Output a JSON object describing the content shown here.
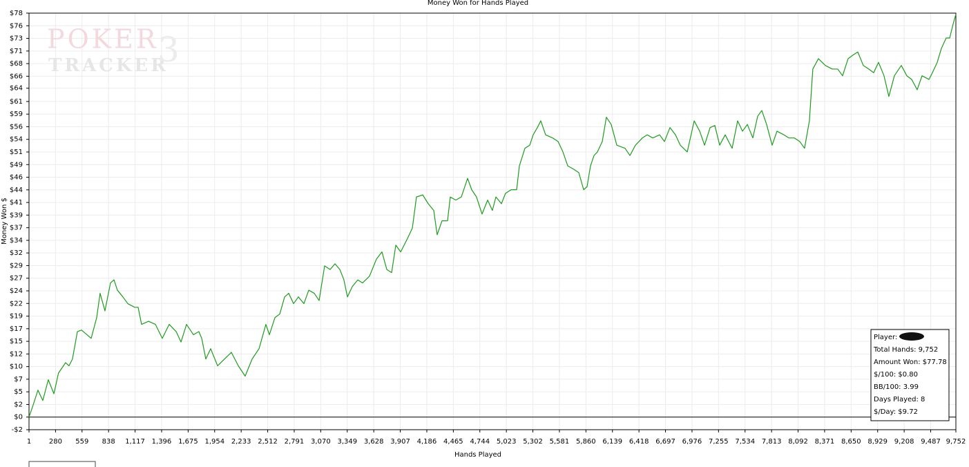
{
  "chart_data": {
    "type": "line",
    "title": "Money Won for Hands Played",
    "xlabel": "Hands Played",
    "ylabel": "Money Won $",
    "watermark": [
      "POKER",
      "TRACKER",
      "3"
    ],
    "grid": true,
    "xlim": [
      1,
      9752
    ],
    "ylim": [
      -2.4375,
      78
    ],
    "xticks": [
      1,
      {
        "value": 280,
        "label": "280"
      },
      {
        "value": 559,
        "label": "559"
      },
      {
        "value": 838,
        "label": "838"
      },
      {
        "value": 1117,
        "label": "1,117"
      },
      {
        "value": 1396,
        "label": "1,396"
      },
      {
        "value": 1675,
        "label": "1,675"
      },
      {
        "value": 1954,
        "label": "1,954"
      },
      {
        "value": 2233,
        "label": "2,233"
      },
      {
        "value": 2512,
        "label": "2,512"
      },
      {
        "value": 2791,
        "label": "2,791"
      },
      {
        "value": 3070,
        "label": "3,070"
      },
      {
        "value": 3349,
        "label": "3,349"
      },
      {
        "value": 3628,
        "label": "3,628"
      },
      {
        "value": 3907,
        "label": "3,907"
      },
      {
        "value": 4186,
        "label": "4,186"
      },
      {
        "value": 4465,
        "label": "4,465"
      },
      {
        "value": 4744,
        "label": "4,744"
      },
      {
        "value": 5023,
        "label": "5,023"
      },
      {
        "value": 5302,
        "label": "5,302"
      },
      {
        "value": 5581,
        "label": "5,581"
      },
      {
        "value": 5860,
        "label": "5,860"
      },
      {
        "value": 6139,
        "label": "6,139"
      },
      {
        "value": 6418,
        "label": "6,418"
      },
      {
        "value": 6697,
        "label": "6,697"
      },
      {
        "value": 6976,
        "label": "6,976"
      },
      {
        "value": 7255,
        "label": "7,255"
      },
      {
        "value": 7534,
        "label": "7,534"
      },
      {
        "value": 7813,
        "label": "7,813"
      },
      {
        "value": 8092,
        "label": "8,092"
      },
      {
        "value": 8371,
        "label": "8,371"
      },
      {
        "value": 8650,
        "label": "8,650"
      },
      {
        "value": 8929,
        "label": "8,929"
      },
      {
        "value": 9208,
        "label": "9,208"
      },
      {
        "value": 9487,
        "label": "9,487"
      },
      {
        "value": 9752,
        "label": "9,752"
      }
    ],
    "yticks": [
      {
        "value": -2.4375,
        "label": "-$2"
      },
      {
        "value": 0,
        "label": "$0"
      },
      {
        "value": 2.4375,
        "label": "$2"
      },
      {
        "value": 4.875,
        "label": "$5"
      },
      {
        "value": 7.3125,
        "label": "$7"
      },
      {
        "value": 9.75,
        "label": "$10"
      },
      {
        "value": 12.1875,
        "label": "$12"
      },
      {
        "value": 14.625,
        "label": "$15"
      },
      {
        "value": 17.0625,
        "label": "$17"
      },
      {
        "value": 19.49,
        "label": "$19"
      },
      {
        "value": 21.9375,
        "label": "$22"
      },
      {
        "value": 24.375,
        "label": "$24"
      },
      {
        "value": 26.8125,
        "label": "$27"
      },
      {
        "value": 29.25,
        "label": "$29"
      },
      {
        "value": 31.6875,
        "label": "$32"
      },
      {
        "value": 34.125,
        "label": "$34"
      },
      {
        "value": 36.5625,
        "label": "$37"
      },
      {
        "value": 39,
        "label": "$39"
      },
      {
        "value": 41.4375,
        "label": "$41"
      },
      {
        "value": 43.875,
        "label": "$44"
      },
      {
        "value": 46.3125,
        "label": "$46"
      },
      {
        "value": 48.75,
        "label": "$49"
      },
      {
        "value": 51.1875,
        "label": "$51"
      },
      {
        "value": 53.625,
        "label": "$54"
      },
      {
        "value": 56.0625,
        "label": "$56"
      },
      {
        "value": 58.5,
        "label": "$59"
      },
      {
        "value": 60.9375,
        "label": "$61"
      },
      {
        "value": 63.5,
        "label": "$64"
      },
      {
        "value": 65.8125,
        "label": "$66"
      },
      {
        "value": 68.25,
        "label": "$68"
      },
      {
        "value": 70.6875,
        "label": "$71"
      },
      {
        "value": 73.125,
        "label": "$73"
      },
      {
        "value": 75.5625,
        "label": "$76"
      },
      {
        "value": 78,
        "label": "$78"
      }
    ],
    "series": [
      {
        "name": "Money Won",
        "color": "#1e9a1e",
        "x": [
          1,
          37,
          95,
          146,
          204,
          263,
          311,
          386,
          422,
          458,
          510,
          553,
          611,
          655,
          713,
          749,
          800,
          858,
          895,
          931,
          989,
          1040,
          1113,
          1149,
          1185,
          1258,
          1331,
          1403,
          1476,
          1549,
          1600,
          1658,
          1731,
          1788,
          1818,
          1861,
          1912,
          1985,
          2057,
          2130,
          2203,
          2275,
          2348,
          2421,
          2493,
          2530,
          2588,
          2639,
          2690,
          2733,
          2784,
          2835,
          2893,
          2944,
          3002,
          3053,
          3111,
          3169,
          3220,
          3271,
          3314,
          3351,
          3402,
          3460,
          3510,
          3583,
          3656,
          3714,
          3765,
          3816,
          3860,
          3911,
          3983,
          4034,
          4077,
          4143,
          4201,
          4259,
          4295,
          4346,
          4404,
          4433,
          4491,
          4549,
          4615,
          4658,
          4709,
          4767,
          4826,
          4876,
          4913,
          4971,
          5014,
          5073,
          5131,
          5160,
          5218,
          5269,
          5305,
          5349,
          5385,
          5436,
          5509,
          5567,
          5618,
          5669,
          5727,
          5785,
          5836,
          5872,
          5908,
          5945,
          5981,
          6032,
          6075,
          6126,
          6185,
          6272,
          6323,
          6381,
          6454,
          6505,
          6563,
          6635,
          6686,
          6744,
          6802,
          6853,
          6926,
          6999,
          7057,
          7108,
          7166,
          7216,
          7267,
          7325,
          7398,
          7456,
          7507,
          7558,
          7616,
          7667,
          7710,
          7761,
          7819,
          7870,
          7943,
          7994,
          8052,
          8110,
          8160,
          8211,
          8247,
          8306,
          8378,
          8451,
          8509,
          8560,
          8618,
          8669,
          8720,
          8778,
          8836,
          8887,
          8938,
          8996,
          9047,
          9105,
          9178,
          9236,
          9287,
          9345,
          9396,
          9469,
          9505,
          9556,
          9600,
          9650,
          9687,
          9723,
          9752
        ],
        "values": [
          0,
          1.9,
          5.2,
          3.2,
          7.2,
          4.5,
          8.5,
          10.5,
          9.9,
          11.2,
          16.5,
          16.8,
          15.9,
          15.2,
          19.2,
          23.9,
          20.5,
          25.9,
          26.5,
          24.5,
          23.2,
          21.9,
          21.2,
          21.2,
          17.9,
          18.5,
          17.9,
          15.2,
          17.9,
          16.5,
          14.5,
          17.9,
          15.9,
          16.5,
          15.2,
          11.2,
          13.2,
          9.9,
          11.2,
          12.5,
          9.9,
          7.9,
          11.2,
          13.2,
          17.9,
          15.9,
          19.2,
          19.9,
          23.2,
          23.9,
          21.9,
          23.2,
          21.9,
          24.5,
          23.9,
          22.5,
          29.2,
          28.5,
          29.6,
          28.5,
          26.5,
          23.2,
          25.2,
          26.5,
          25.9,
          27.2,
          30.5,
          31.9,
          28.5,
          27.9,
          33.2,
          31.9,
          34.5,
          36.5,
          42.5,
          42.9,
          41.2,
          39.9,
          35.2,
          37.9,
          37.9,
          42.5,
          41.9,
          42.5,
          46.1,
          43.9,
          42.5,
          39.2,
          41.9,
          39.9,
          42.5,
          41.2,
          43.2,
          43.9,
          43.9,
          48.5,
          51.9,
          52.5,
          54.5,
          55.9,
          57.2,
          54.5,
          53.9,
          53.2,
          51.2,
          48.5,
          47.9,
          47.2,
          43.9,
          44.5,
          48.5,
          50.5,
          51.2,
          53.2,
          57.9,
          56.5,
          52.5,
          51.9,
          50.5,
          52.5,
          53.9,
          54.5,
          53.9,
          54.5,
          53.2,
          55.9,
          54.5,
          52.5,
          51.2,
          57.2,
          55.2,
          52.5,
          55.9,
          56.3,
          52.5,
          54.5,
          51.9,
          57.2,
          55.2,
          56.5,
          53.9,
          58.1,
          59.2,
          56.5,
          52.5,
          55.2,
          54.5,
          53.9,
          53.9,
          53.2,
          51.9,
          57.2,
          67.2,
          69.2,
          67.9,
          67.2,
          67.2,
          65.9,
          69.2,
          69.9,
          70.5,
          67.9,
          67.2,
          66.5,
          68.5,
          65.9,
          61.9,
          65.9,
          67.9,
          65.9,
          65.2,
          63.2,
          65.9,
          65.2,
          66.5,
          68.5,
          71.2,
          73.2,
          73.2,
          75.9,
          77.78
        ]
      }
    ],
    "stats": [
      "Player:",
      "Total Hands: 9,752",
      "Amount Won: $77.78",
      "$/100: $0.80",
      "BB/100: 3.99",
      "Days Played: 8",
      "$/Day: $9.72"
    ]
  }
}
